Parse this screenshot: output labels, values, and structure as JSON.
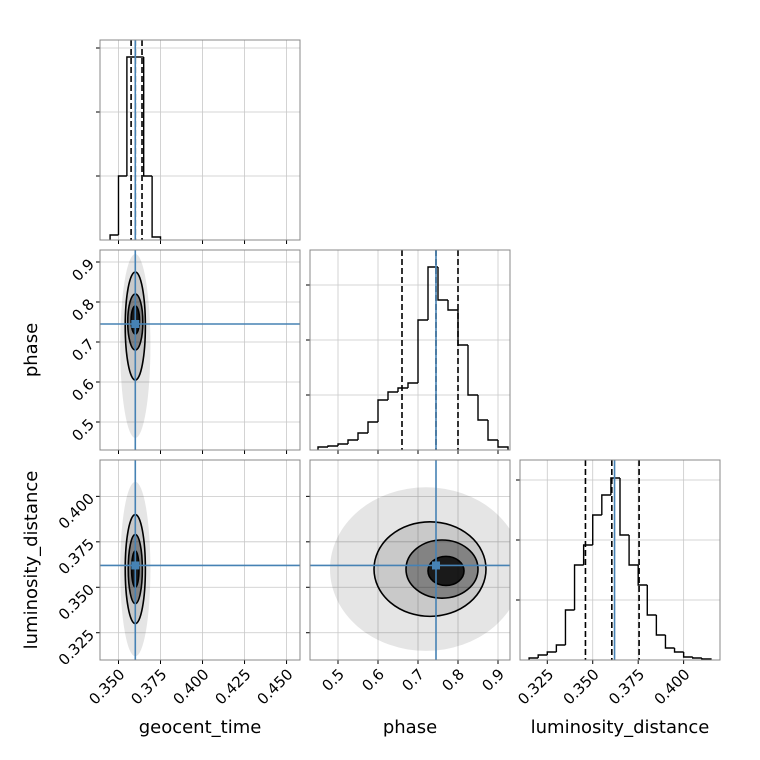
{
  "chart_data": [
    {
      "type": "histogram",
      "bins": [
        0.345,
        0.35,
        0.355,
        0.36,
        0.365,
        0.37,
        0.375
      ],
      "counts": [
        5,
        64,
        183,
        183,
        64,
        3
      ],
      "xlim": [
        0.339,
        0.458
      ],
      "xticks": [
        {
          "value": 0.35,
          "label": "0.350"
        },
        0.375,
        {
          "value": 0.4,
          "label": "0.400"
        },
        0.425,
        {
          "value": 0.45,
          "label": "0.450"
        }
      ],
      "ylim": [
        0,
        200
      ],
      "yticks": [
        64,
        128,
        192
      ],
      "quantiles": [
        0.3575,
        0.36,
        0.364
      ],
      "truth": 0.36,
      "color": "#000000",
      "truth_color": "#4682b4",
      "grid": true
    },
    {
      "type": "contour",
      "ylabel": "phase",
      "xlim": [
        0.339,
        0.458
      ],
      "xticks": [
        {
          "value": 0.35,
          "label": "0.350"
        },
        0.375,
        {
          "value": 0.4,
          "label": "0.400"
        },
        0.425,
        {
          "value": 0.45,
          "label": "0.450"
        }
      ],
      "ylim": [
        0.43,
        0.93
      ],
      "yticks": [
        0.5,
        0.6,
        0.7,
        0.8,
        0.9
      ],
      "truth": [
        0.36,
        0.745
      ],
      "cloud": {
        "center": [
          0.36,
          0.69
        ],
        "radii": [
          0.009,
          0.23
        ]
      },
      "contours": [
        {
          "center": [
            0.36,
            0.74
          ],
          "radii": [
            0.006,
            0.135
          ]
        },
        {
          "center": [
            0.36,
            0.75
          ],
          "radii": [
            0.0045,
            0.07
          ]
        },
        {
          "center": [
            0.36,
            0.755
          ],
          "radii": [
            0.0025,
            0.035
          ]
        }
      ],
      "color": "#000000",
      "truth_color": "#4682b4",
      "grid": true
    },
    {
      "type": "histogram",
      "bins": [
        0.45,
        0.475,
        0.5,
        0.525,
        0.55,
        0.575,
        0.6,
        0.625,
        0.65,
        0.675,
        0.7,
        0.725,
        0.75,
        0.775,
        0.8,
        0.825,
        0.85,
        0.875,
        0.9,
        0.925
      ],
      "counts": [
        3,
        4,
        6,
        10,
        17,
        28,
        50,
        58,
        62,
        67,
        130,
        183,
        150,
        140,
        105,
        55,
        30,
        10,
        3
      ],
      "xlim": [
        0.43,
        0.93
      ],
      "xticks": [
        0.5,
        0.6,
        0.7,
        0.8,
        0.9
      ],
      "ylim": [
        0,
        200
      ],
      "yticks": [
        55,
        110,
        165
      ],
      "quantiles": [
        0.66,
        0.745,
        0.8
      ],
      "truth": 0.745,
      "color": "#000000",
      "truth_color": "#4682b4",
      "grid": true
    },
    {
      "type": "contour",
      "xlabel": "geocent_time",
      "ylabel": "luminosity_distance",
      "xlim": [
        0.339,
        0.458
      ],
      "xticks": [
        {
          "value": 0.35,
          "label": "0.350"
        },
        0.375,
        {
          "value": 0.4,
          "label": "0.400"
        },
        0.425,
        {
          "value": 0.45,
          "label": "0.450"
        }
      ],
      "ylim": [
        0.31,
        0.42
      ],
      "yticks": [
        0.325,
        {
          "value": 0.35,
          "label": "0.350"
        },
        0.375,
        {
          "value": 0.4,
          "label": "0.400"
        }
      ],
      "truth": [
        0.36,
        0.362
      ],
      "cloud": {
        "center": [
          0.36,
          0.36
        ],
        "radii": [
          0.009,
          0.048
        ]
      },
      "contours": [
        {
          "center": [
            0.36,
            0.36
          ],
          "radii": [
            0.006,
            0.03
          ]
        },
        {
          "center": [
            0.36,
            0.36
          ],
          "radii": [
            0.0042,
            0.019
          ]
        },
        {
          "center": [
            0.36,
            0.36
          ],
          "radii": [
            0.0022,
            0.01
          ]
        }
      ],
      "color": "#000000",
      "truth_color": "#4682b4",
      "grid": true
    },
    {
      "type": "contour",
      "xlabel": "phase",
      "xlim": [
        0.43,
        0.93
      ],
      "xticks": [
        0.5,
        0.6,
        0.7,
        0.8,
        0.9
      ],
      "ylim": [
        0.31,
        0.42
      ],
      "yticks": [
        0.325,
        {
          "value": 0.35,
          "label": "0.350"
        },
        0.375,
        {
          "value": 0.4,
          "label": "0.400"
        }
      ],
      "truth": [
        0.745,
        0.362
      ],
      "cloud": {
        "center": [
          0.72,
          0.36
        ],
        "radii": [
          0.24,
          0.045
        ]
      },
      "contours": [
        {
          "center": [
            0.73,
            0.36
          ],
          "radii": [
            0.14,
            0.026
          ]
        },
        {
          "center": [
            0.76,
            0.36
          ],
          "radii": [
            0.09,
            0.016
          ]
        },
        {
          "center": [
            0.77,
            0.359
          ],
          "radii": [
            0.045,
            0.008
          ]
        }
      ],
      "color": "#000000",
      "truth_color": "#4682b4",
      "grid": true
    },
    {
      "type": "histogram",
      "xlabel": "luminosity_distance",
      "bins": [
        0.315,
        0.32,
        0.325,
        0.33,
        0.335,
        0.34,
        0.345,
        0.35,
        0.355,
        0.36,
        0.365,
        0.37,
        0.375,
        0.38,
        0.385,
        0.39,
        0.395,
        0.4,
        0.405,
        0.41,
        0.415
      ],
      "counts": [
        2,
        5,
        8,
        15,
        50,
        95,
        115,
        145,
        165,
        182,
        125,
        95,
        75,
        45,
        25,
        12,
        8,
        3,
        2,
        1
      ],
      "xlim": [
        0.31,
        0.42
      ],
      "xticks": [
        0.325,
        {
          "value": 0.35,
          "label": "0.350"
        },
        0.375,
        {
          "value": 0.4,
          "label": "0.400"
        }
      ],
      "ylim": [
        0,
        200
      ],
      "yticks": [
        60,
        120,
        180
      ],
      "quantiles": [
        0.346,
        0.3605,
        0.3755
      ],
      "truth": 0.362,
      "color": "#000000",
      "truth_color": "#4682b4",
      "grid": true
    }
  ]
}
